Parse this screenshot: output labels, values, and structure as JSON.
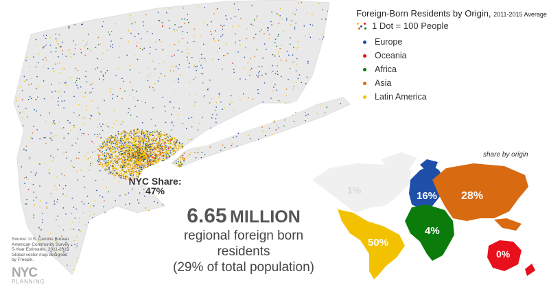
{
  "legend": {
    "title": "Foreign-Born Residents by Origin,",
    "title_small": "2011-2015 Average",
    "dot_note": "1 Dot = 100 People",
    "items": [
      {
        "label": "Europe",
        "color": "#1f4fa8"
      },
      {
        "label": "Oceania",
        "color": "#e8101c"
      },
      {
        "label": "Africa",
        "color": "#0b7b0b"
      },
      {
        "label": "Asia",
        "color": "#d86a12"
      },
      {
        "label": "Latin America",
        "color": "#f2c200"
      }
    ]
  },
  "world_map": {
    "label": "share by origin",
    "shares": {
      "north_america": "1%",
      "europe": "16%",
      "asia": "28%",
      "africa": "4%",
      "latin_america": "50%",
      "oceania": "0%"
    }
  },
  "map": {
    "nyc_share_label": "NYC Share:",
    "nyc_share_value": "47%"
  },
  "stat": {
    "number": "6.65",
    "unit": "MILLION",
    "line1": "regional foreign born residents",
    "line2": "(29% of total population)"
  },
  "source": {
    "lines": [
      "Source: U.S. Census Bureau",
      "American Community Survey",
      "5-Year Estimates, 2011-2015",
      "Global vector map designed",
      "by Freepik."
    ]
  },
  "logo": {
    "main": "NYC",
    "sub": "PLANNING"
  }
}
